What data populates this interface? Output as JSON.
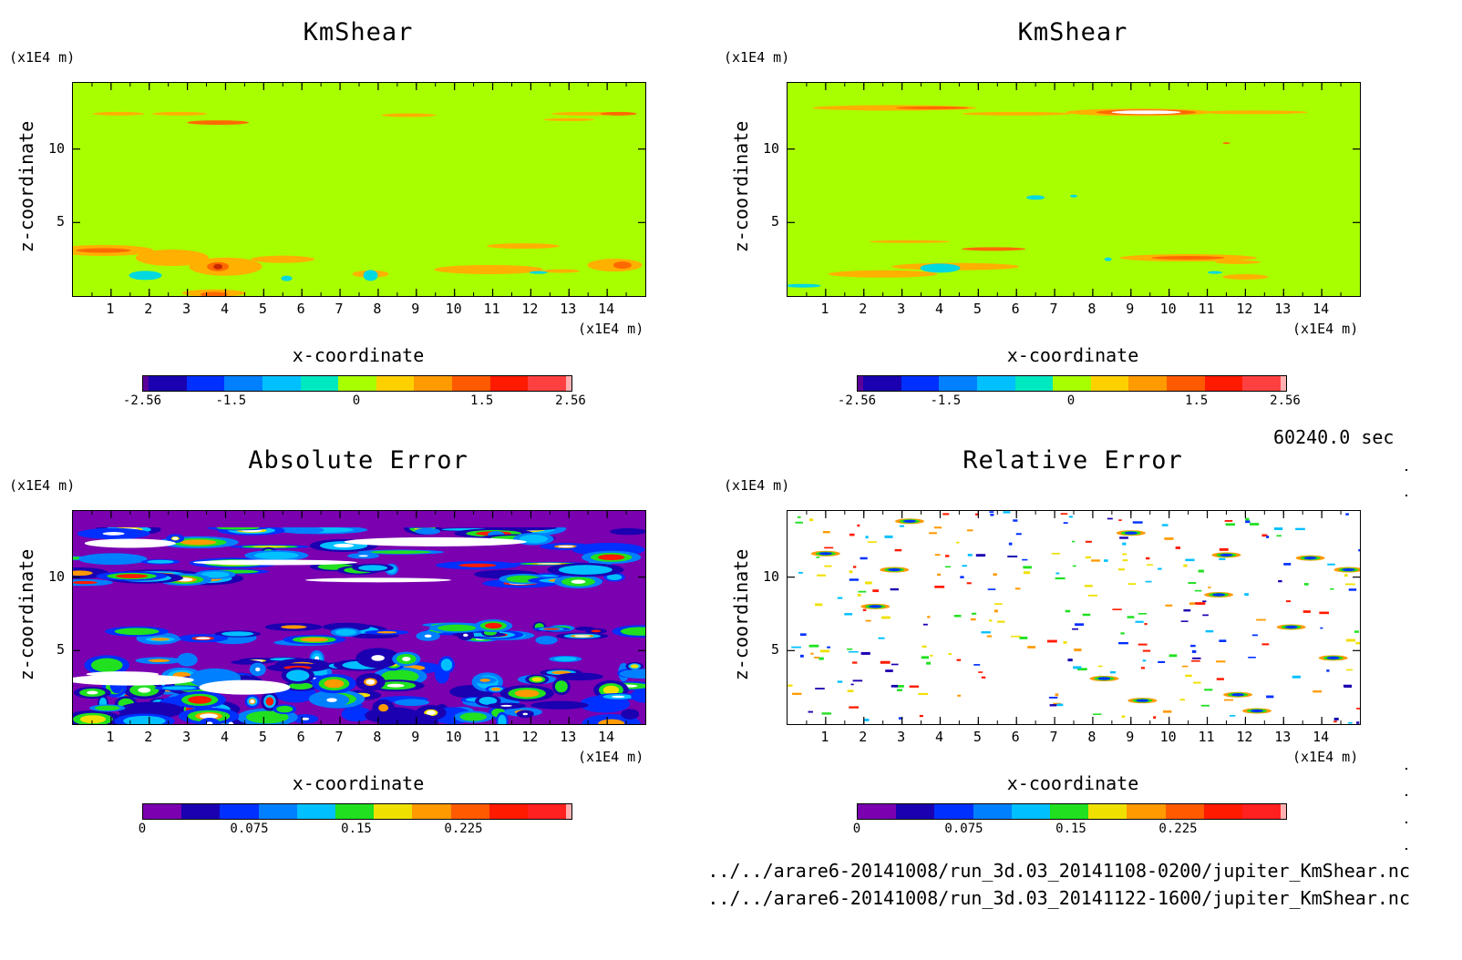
{
  "time_label": "60240.0 sec",
  "files": [
    "../../arare6-20141008/run_3d.03_20141108-0200/jupiter_KmShear.nc",
    "../../arare6-20141008/run_3d.03_20141122-1600/jupiter_KmShear.nc"
  ],
  "axes": {
    "y_unit": "(x1E4 m)",
    "x_unit": "(x1E4 m)",
    "xlabel": "x-coordinate",
    "ylabel": "z-coordinate",
    "x_ticks": [
      "1",
      "2",
      "3",
      "4",
      "5",
      "6",
      "7",
      "8",
      "9",
      "10",
      "11",
      "12",
      "13",
      "14"
    ],
    "y_ticks": [
      "10",
      "5"
    ]
  },
  "colors": {
    "field_bg": "#a8ff00",
    "abs_bg": "#7a00b0",
    "rel_bg": "#ffffff"
  },
  "colorscale_kmshear": [
    "#5a009a",
    "#1a00b0",
    "#0030ff",
    "#0080ff",
    "#00c0ff",
    "#00e8c0",
    "#a8ff00",
    "#ffd000",
    "#ff9a00",
    "#ff5a00",
    "#ff1a00",
    "#ff4040",
    "#ffb0b0"
  ],
  "colorscale_error": [
    "#7a00b0",
    "#1a00b0",
    "#0030ff",
    "#0080ff",
    "#00c0ff",
    "#20e020",
    "#f0e000",
    "#ff9a00",
    "#ff5a00",
    "#ff1a00",
    "#ff2020",
    "#ffb0b0"
  ],
  "chart_data": [
    {
      "type": "heatmap",
      "title": "KmShear",
      "xlabel": "x-coordinate",
      "ylabel": "z-coordinate",
      "xlim": [
        0,
        15
      ],
      "ylim": [
        0,
        14.5
      ],
      "colorbar_ticks": [
        "-2.56",
        "-1.5",
        "0",
        "1.5",
        "2.56"
      ],
      "colorbar_range": [
        -2.56,
        2.56
      ]
    },
    {
      "type": "heatmap",
      "title": "KmShear",
      "xlabel": "x-coordinate",
      "ylabel": "z-coordinate",
      "xlim": [
        0,
        15
      ],
      "ylim": [
        0,
        14.5
      ],
      "colorbar_ticks": [
        "-2.56",
        "-1.5",
        "0",
        "1.5",
        "2.56"
      ],
      "colorbar_range": [
        -2.56,
        2.56
      ]
    },
    {
      "type": "heatmap",
      "title": "Absolute Error",
      "xlabel": "x-coordinate",
      "ylabel": "z-coordinate",
      "xlim": [
        0,
        15
      ],
      "ylim": [
        0,
        14.5
      ],
      "colorbar_ticks": [
        "0",
        "0.075",
        "0.15",
        "0.225"
      ],
      "colorbar_range": [
        0,
        0.3
      ]
    },
    {
      "type": "heatmap",
      "title": "Relative Error",
      "xlabel": "x-coordinate",
      "ylabel": "z-coordinate",
      "xlim": [
        0,
        15
      ],
      "ylim": [
        0,
        14.5
      ],
      "colorbar_ticks": [
        "0",
        "0.075",
        "0.15",
        "0.225"
      ],
      "colorbar_range": [
        0,
        0.3
      ]
    }
  ]
}
